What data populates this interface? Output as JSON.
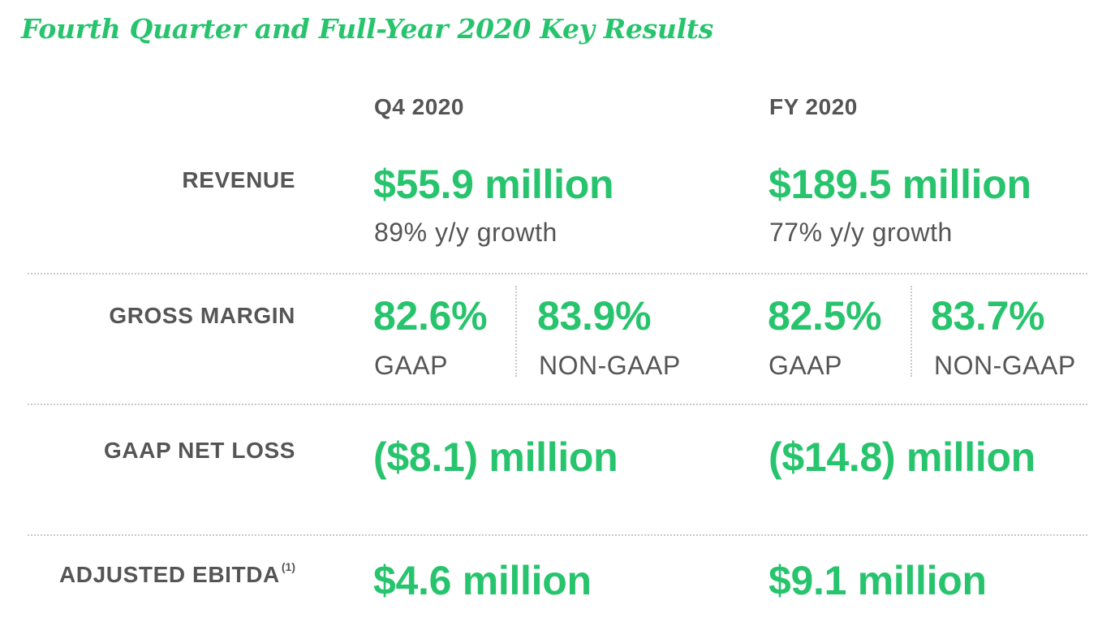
{
  "title": "Fourth Quarter and Full-Year 2020 Key Results",
  "columns": {
    "q4": "Q4 2020",
    "fy": "FY 2020"
  },
  "rows": {
    "revenue": {
      "label": "REVENUE",
      "q4_value": "$55.9 million",
      "q4_growth": "89% y/y growth",
      "fy_value": "$189.5 million",
      "fy_growth": "77% y/y growth"
    },
    "gross_margin": {
      "label": "GROSS MARGIN",
      "q4_gaap_value": "82.6%",
      "q4_gaap_label": "GAAP",
      "q4_nongaap_value": "83.9%",
      "q4_nongaap_label": "NON-GAAP",
      "fy_gaap_value": "82.5%",
      "fy_gaap_label": "GAAP",
      "fy_nongaap_value": "83.7%",
      "fy_nongaap_label": "NON-GAAP"
    },
    "net_loss": {
      "label": "GAAP NET LOSS",
      "q4_value": "($8.1) million",
      "fy_value": "($14.8) million"
    },
    "ebitda": {
      "label": "ADJUSTED EBITDA",
      "footnote": "(1)",
      "q4_value": "$4.6 million",
      "fy_value": "$9.1 million"
    }
  },
  "colors": {
    "accent": "#27c46d",
    "text": "#555555",
    "divider": "#c8c8c8"
  }
}
